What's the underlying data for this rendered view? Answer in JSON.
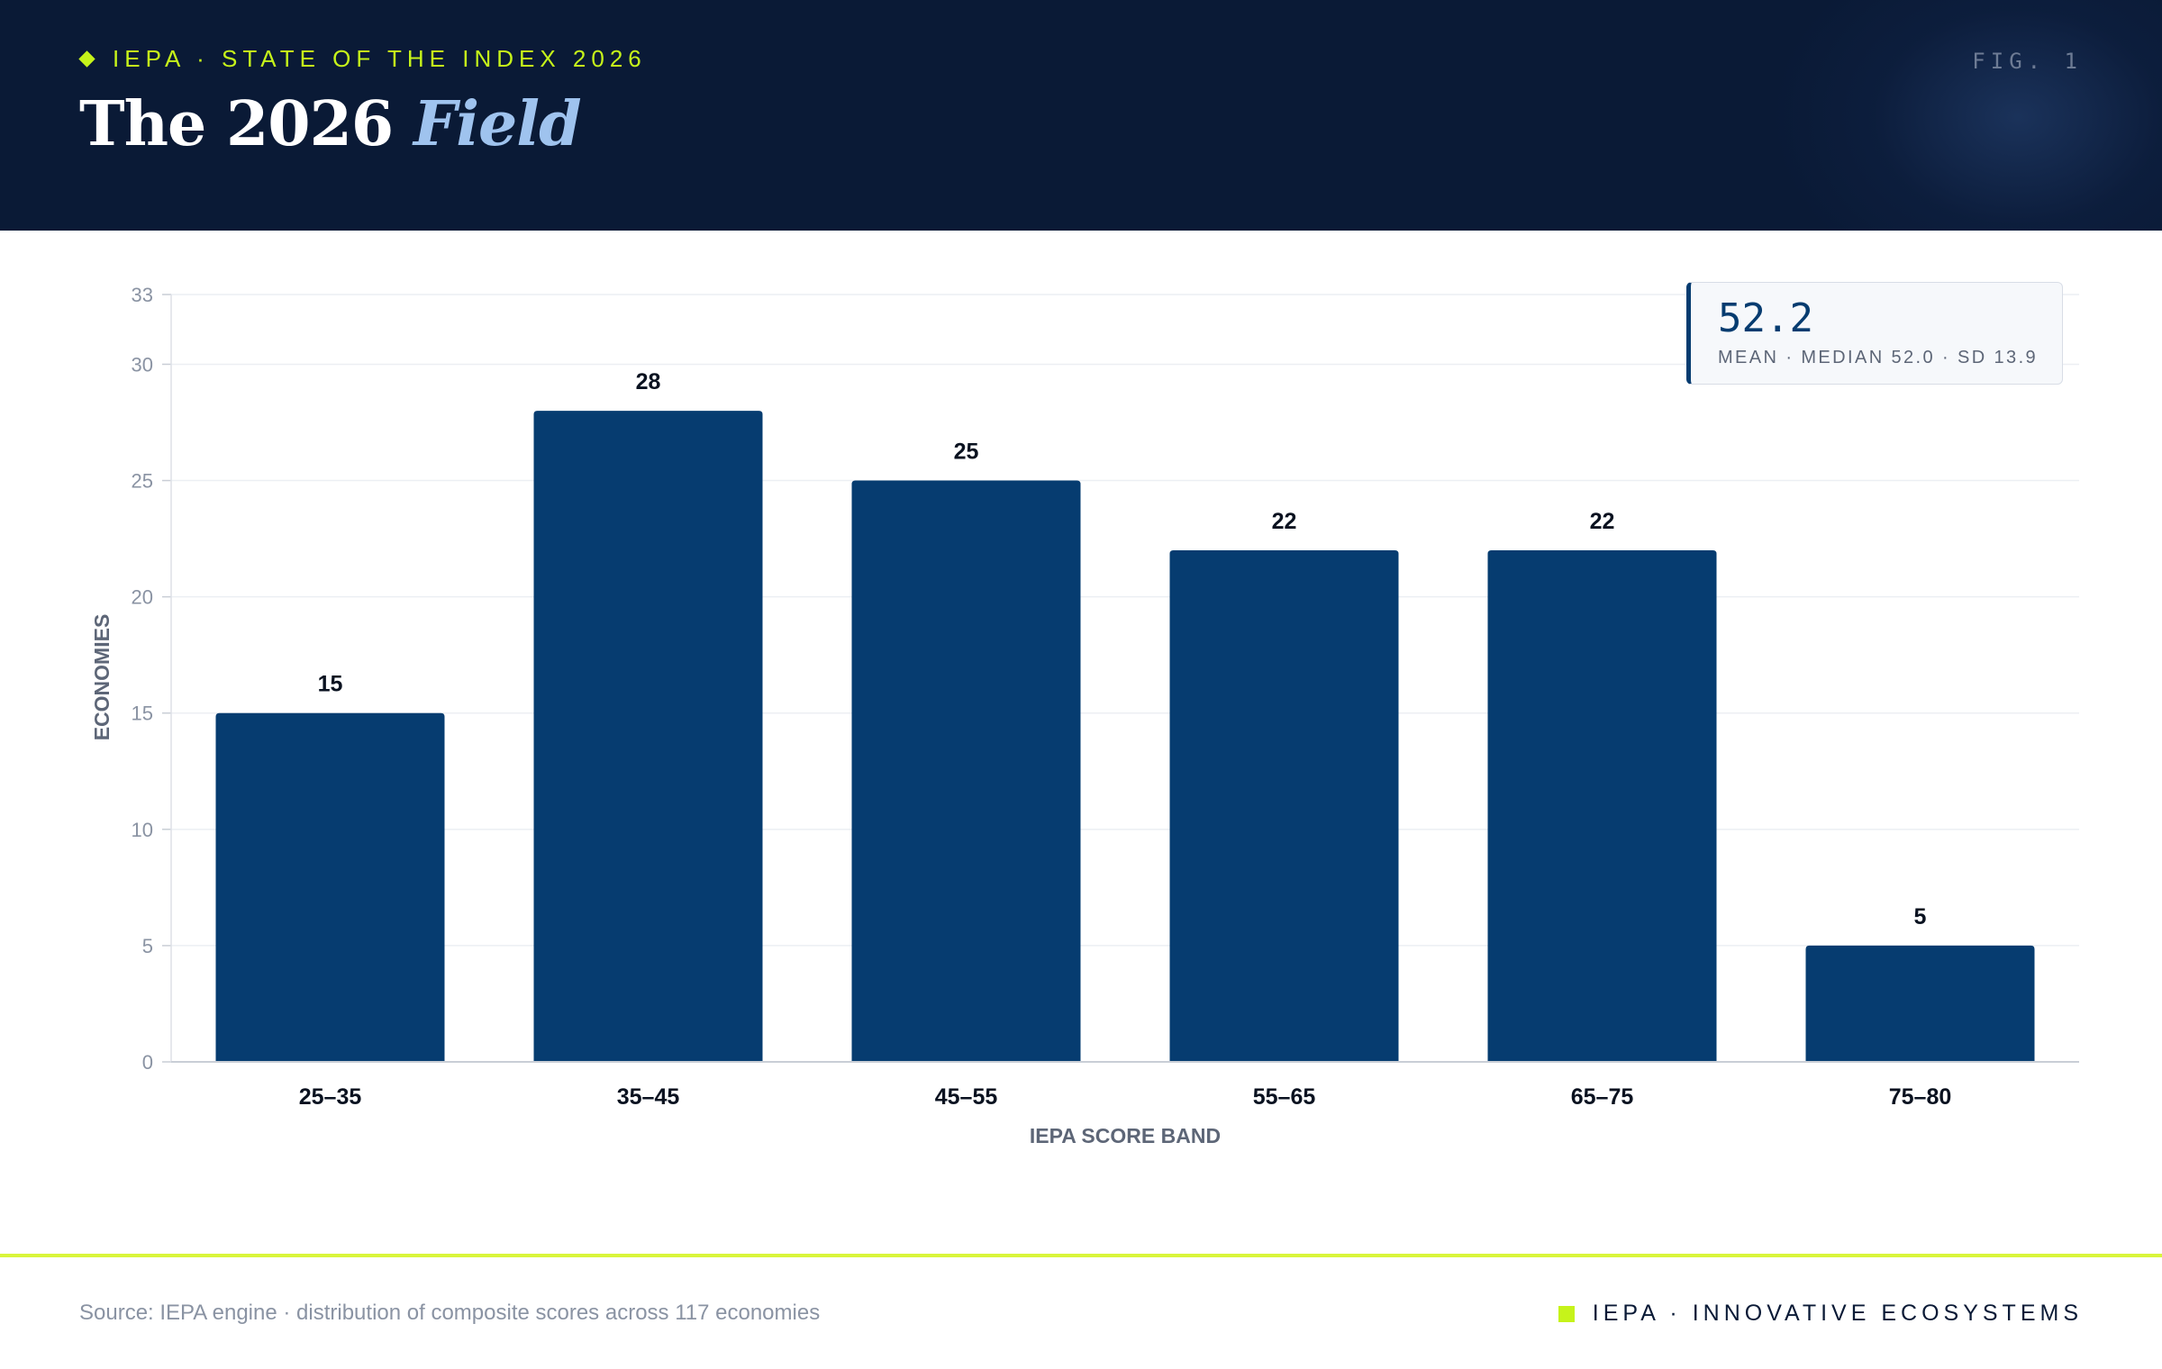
{
  "header": {
    "kicker": "IEPA · STATE OF THE INDEX 2026",
    "fig_label": "FIG. 1",
    "title_main": "The 2026",
    "title_accent": "Field"
  },
  "stat_box": {
    "value": "52.2",
    "caption": "MEAN · MEDIAN 52.0 · SD 13.9"
  },
  "footer": {
    "source": "Source: IEPA engine · distribution of composite scores across 117 economies",
    "brand": "IEPA · INNOVATIVE ECOSYSTEMS"
  },
  "colors": {
    "bar": "#063c70",
    "accent": "#c6f31a",
    "header_bg": "#0a1a36"
  },
  "chart_data": {
    "type": "bar",
    "categories": [
      "25–35",
      "35–45",
      "45–55",
      "55–65",
      "65–75",
      "75–80"
    ],
    "values": [
      15,
      28,
      25,
      22,
      22,
      5
    ],
    "xlabel": "IEPA SCORE BAND",
    "ylabel": "ECONOMIES",
    "ylim": [
      0,
      33
    ],
    "yticks": [
      0,
      5,
      10,
      15,
      20,
      25,
      30,
      33
    ],
    "grid": true,
    "data_labels": true
  }
}
